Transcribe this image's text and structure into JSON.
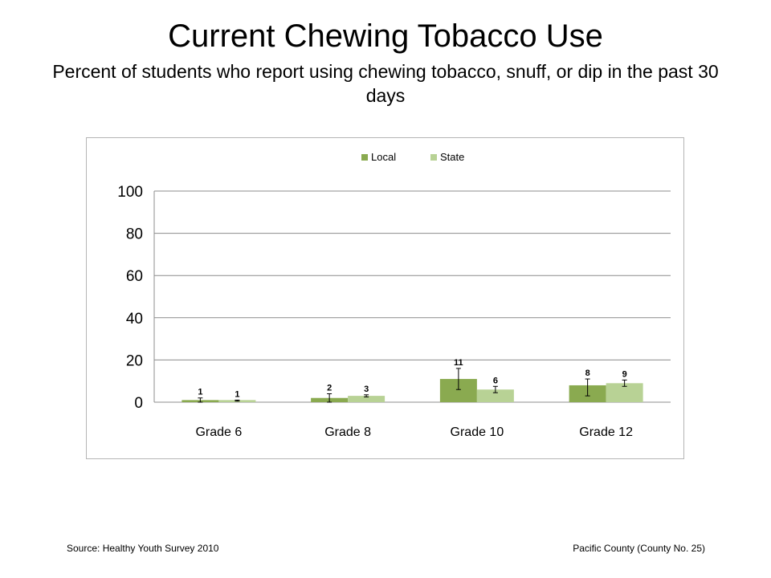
{
  "title": "Current Chewing Tobacco Use",
  "subtitle": "Percent of students who report using chewing tobacco, snuff, or dip in the past 30 days",
  "footer": {
    "source": "Source: Healthy Youth Survey 2010",
    "county": "Pacific County (County No. 25)"
  },
  "chart_data": {
    "type": "bar",
    "categories": [
      "Grade 6",
      "Grade 8",
      "Grade 10",
      "Grade 12"
    ],
    "series": [
      {
        "name": "Local",
        "color": "#8aaa50",
        "values": [
          1,
          2,
          11,
          8
        ],
        "labels": [
          "1",
          "2",
          "11",
          "8"
        ],
        "error": [
          [
            0,
            2
          ],
          [
            0,
            4
          ],
          [
            6,
            16
          ],
          [
            3,
            11
          ]
        ]
      },
      {
        "name": "State",
        "color": "#b8d295",
        "values": [
          1,
          3,
          6,
          9
        ],
        "labels": [
          "1",
          "3",
          "6",
          "9"
        ],
        "error": [
          [
            0.5,
            1
          ],
          [
            2.5,
            3.5
          ],
          [
            4.5,
            7.5
          ],
          [
            7.5,
            10.5
          ]
        ]
      }
    ],
    "ylim": [
      0,
      100
    ],
    "yticks": [
      "0",
      "20",
      "40",
      "60",
      "80",
      "100"
    ],
    "grid": true,
    "legend": "top-center"
  }
}
